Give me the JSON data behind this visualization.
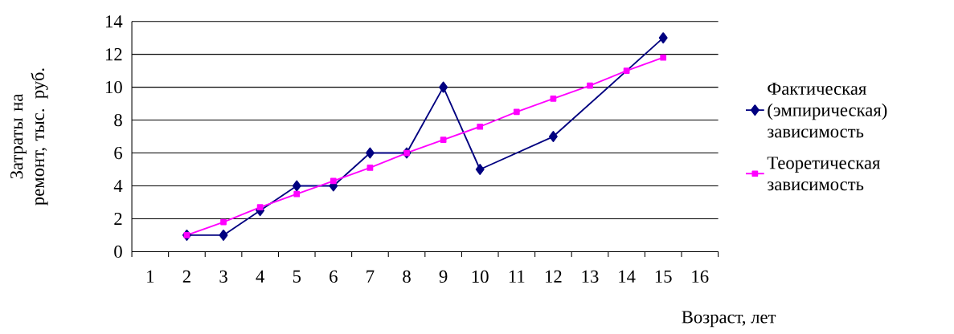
{
  "chart_data": {
    "type": "line",
    "xlabel": "Возраст, лет",
    "ylabel": "Затраты на ремонт, тыс. руб.",
    "xlim": [
      0.5,
      16.5
    ],
    "xticks": [
      {
        "value": 0.5,
        "label": null
      },
      1,
      {
        "value": 1.5,
        "label": null
      },
      2,
      {
        "value": 2.5,
        "label": null
      },
      3,
      {
        "value": 3.5,
        "label": null
      },
      4,
      {
        "value": 4.5,
        "label": null
      },
      5,
      {
        "value": 5.5,
        "label": null
      },
      6,
      {
        "value": 6.5,
        "label": null
      },
      7,
      {
        "value": 7.5,
        "label": null
      },
      8,
      {
        "value": 8.5,
        "label": null
      },
      9,
      {
        "value": 9.5,
        "label": null
      },
      10,
      {
        "value": 10.5,
        "label": null
      },
      11,
      {
        "value": 11.5,
        "label": null
      },
      12,
      {
        "value": 12.5,
        "label": null
      },
      13,
      {
        "value": 13.5,
        "label": null
      },
      14,
      {
        "value": 14.5,
        "label": null
      },
      15,
      {
        "value": 15.5,
        "label": null
      },
      16,
      {
        "value": 16.5,
        "label": null
      }
    ],
    "ylim": [
      0,
      14
    ],
    "yticks": [
      0,
      2,
      4,
      6,
      8,
      10,
      12,
      14
    ],
    "grid": "y",
    "legend": "right",
    "series": [
      {
        "name": "Фактическая (эмпирическая) зависимость",
        "color": "#000080",
        "marker": "diamond",
        "x": [
          2,
          3,
          4,
          5,
          6,
          7,
          8,
          9,
          10,
          12,
          15
        ],
        "values": [
          1,
          1,
          2.5,
          4,
          4,
          6,
          6,
          10,
          5,
          7,
          13
        ]
      },
      {
        "name": "Теоретическая зависимость",
        "color": "#ff00ff",
        "marker": "square",
        "x": [
          2,
          3,
          4,
          5,
          6,
          7,
          8,
          9,
          10,
          11,
          12,
          13,
          14,
          15
        ],
        "values": [
          1,
          1.8,
          2.7,
          3.5,
          4.3,
          5.1,
          6.0,
          6.8,
          7.6,
          8.5,
          9.3,
          10.1,
          11.0,
          11.8
        ]
      }
    ]
  }
}
